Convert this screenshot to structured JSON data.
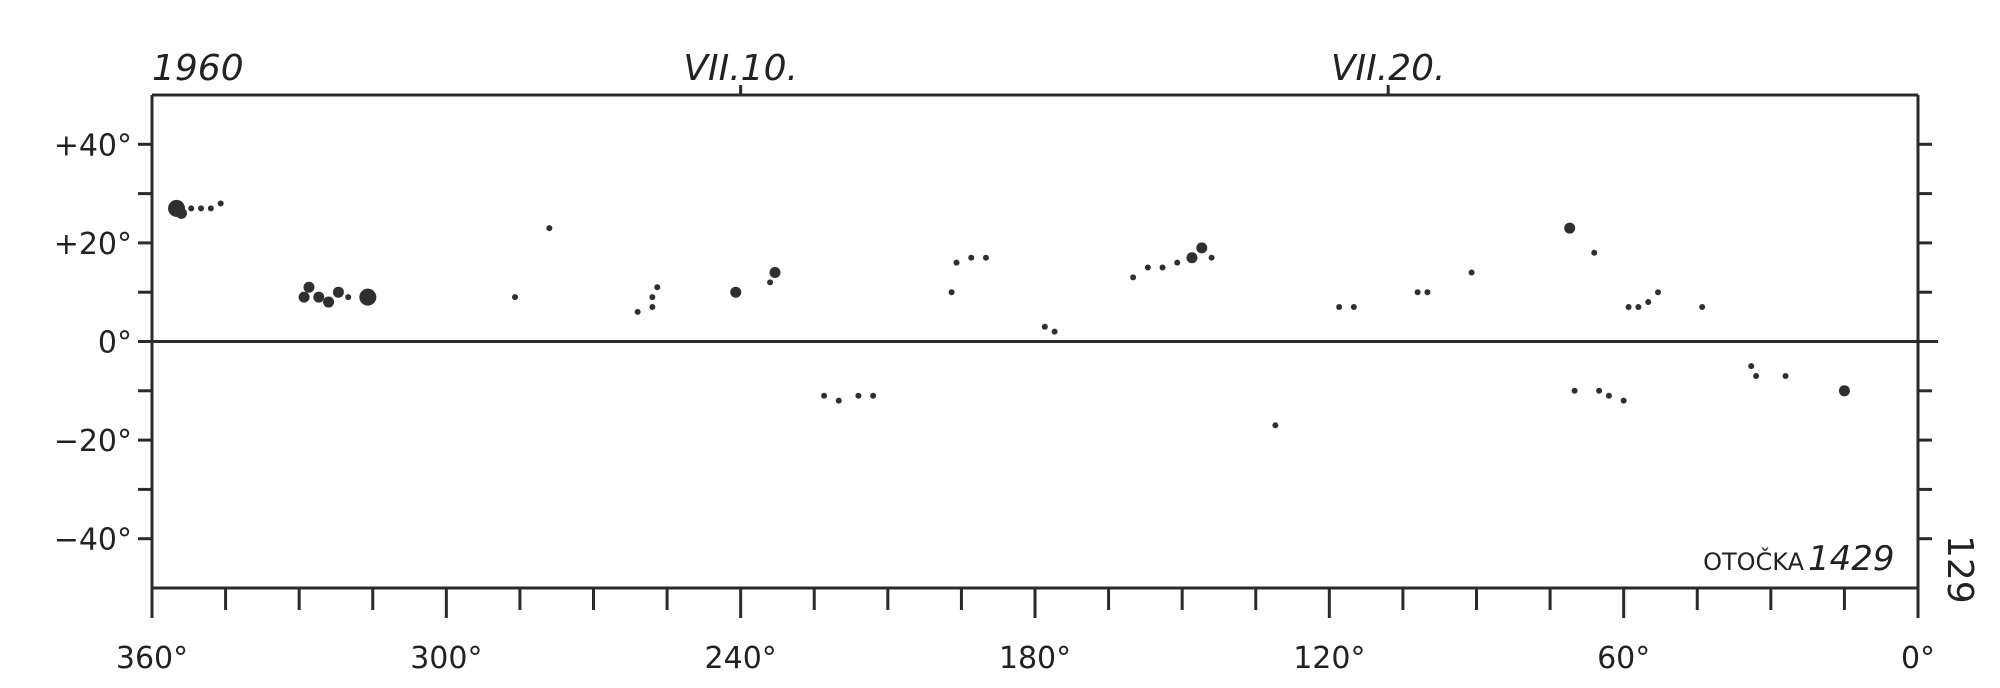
{
  "chart_data": {
    "type": "scatter",
    "year": "1960",
    "date_markers": [
      {
        "label": "VII.10.",
        "longitude": 240
      },
      {
        "label": "VII.20.",
        "longitude": 108
      }
    ],
    "x_ticks": [
      {
        "value": 360,
        "label": "360°"
      },
      {
        "value": 300,
        "label": "300°"
      },
      {
        "value": 240,
        "label": "240°"
      },
      {
        "value": 180,
        "label": "180°"
      },
      {
        "value": 120,
        "label": "120°"
      },
      {
        "value": 60,
        "label": "60°"
      },
      {
        "value": 0,
        "label": "0°"
      }
    ],
    "y_ticks": [
      {
        "value": 40,
        "label": "+40°"
      },
      {
        "value": 20,
        "label": "+20°"
      },
      {
        "value": 0,
        "label": "0°"
      },
      {
        "value": -20,
        "label": "−20°"
      },
      {
        "value": -40,
        "label": "−40°"
      }
    ],
    "xlim": [
      360,
      0
    ],
    "ylim": [
      -50,
      50
    ],
    "rotation_label": "OTOČKA",
    "rotation_number": "1429",
    "page_number": "129",
    "series": [
      {
        "points": [
          {
            "x": 355,
            "y": 27,
            "size": 3
          },
          {
            "x": 354,
            "y": 26,
            "size": 2
          },
          {
            "x": 352,
            "y": 27,
            "size": 1
          },
          {
            "x": 350,
            "y": 27,
            "size": 1
          },
          {
            "x": 348,
            "y": 27,
            "size": 1
          },
          {
            "x": 346,
            "y": 28,
            "size": 1
          },
          {
            "x": 329,
            "y": 9,
            "size": 2
          },
          {
            "x": 328,
            "y": 11,
            "size": 2
          },
          {
            "x": 326,
            "y": 9,
            "size": 2
          },
          {
            "x": 324,
            "y": 8,
            "size": 2
          },
          {
            "x": 322,
            "y": 10,
            "size": 2
          },
          {
            "x": 320,
            "y": 9,
            "size": 1
          },
          {
            "x": 316,
            "y": 9,
            "size": 3
          },
          {
            "x": 279,
            "y": 23,
            "size": 1
          },
          {
            "x": 286,
            "y": 9,
            "size": 1
          },
          {
            "x": 261,
            "y": 6,
            "size": 1
          },
          {
            "x": 258,
            "y": 9,
            "size": 1
          },
          {
            "x": 257,
            "y": 11,
            "size": 1
          },
          {
            "x": 258,
            "y": 7,
            "size": 1
          },
          {
            "x": 241,
            "y": 10,
            "size": 2
          },
          {
            "x": 234,
            "y": 12,
            "size": 1
          },
          {
            "x": 233,
            "y": 14,
            "size": 2
          },
          {
            "x": 196,
            "y": 16,
            "size": 1
          },
          {
            "x": 193,
            "y": 17,
            "size": 1
          },
          {
            "x": 190,
            "y": 17,
            "size": 1
          },
          {
            "x": 197,
            "y": 10,
            "size": 1
          },
          {
            "x": 223,
            "y": -11,
            "size": 1
          },
          {
            "x": 220,
            "y": -12,
            "size": 1
          },
          {
            "x": 216,
            "y": -11,
            "size": 1
          },
          {
            "x": 213,
            "y": -11,
            "size": 1
          },
          {
            "x": 178,
            "y": 3,
            "size": 1
          },
          {
            "x": 176,
            "y": 2,
            "size": 1
          },
          {
            "x": 160,
            "y": 13,
            "size": 1
          },
          {
            "x": 157,
            "y": 15,
            "size": 1
          },
          {
            "x": 154,
            "y": 15,
            "size": 1
          },
          {
            "x": 151,
            "y": 16,
            "size": 1
          },
          {
            "x": 148,
            "y": 17,
            "size": 2
          },
          {
            "x": 146,
            "y": 19,
            "size": 2
          },
          {
            "x": 144,
            "y": 17,
            "size": 1
          },
          {
            "x": 131,
            "y": -17,
            "size": 1
          },
          {
            "x": 118,
            "y": 7,
            "size": 1
          },
          {
            "x": 115,
            "y": 7,
            "size": 1
          },
          {
            "x": 102,
            "y": 10,
            "size": 1
          },
          {
            "x": 100,
            "y": 10,
            "size": 1
          },
          {
            "x": 91,
            "y": 14,
            "size": 1
          },
          {
            "x": 71,
            "y": 23,
            "size": 2
          },
          {
            "x": 66,
            "y": 18,
            "size": 1
          },
          {
            "x": 70,
            "y": -10,
            "size": 1
          },
          {
            "x": 65,
            "y": -10,
            "size": 1
          },
          {
            "x": 63,
            "y": -11,
            "size": 1
          },
          {
            "x": 60,
            "y": -12,
            "size": 1
          },
          {
            "x": 59,
            "y": 7,
            "size": 1
          },
          {
            "x": 57,
            "y": 7,
            "size": 1
          },
          {
            "x": 55,
            "y": 8,
            "size": 1
          },
          {
            "x": 53,
            "y": 10,
            "size": 1
          },
          {
            "x": 44,
            "y": 7,
            "size": 1
          },
          {
            "x": 34,
            "y": -5,
            "size": 1
          },
          {
            "x": 33,
            "y": -7,
            "size": 1
          },
          {
            "x": 27,
            "y": -7,
            "size": 1
          },
          {
            "x": 15,
            "y": -10,
            "size": 2
          }
        ]
      }
    ]
  }
}
